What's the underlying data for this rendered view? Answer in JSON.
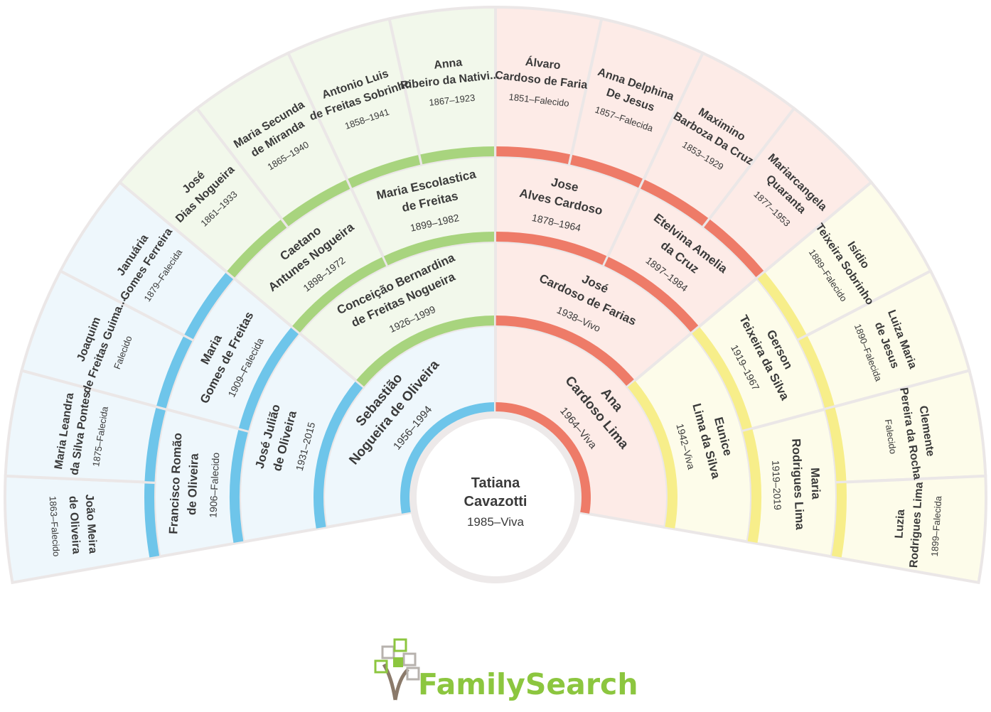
{
  "root": {
    "name_lines": [
      "Tatiana",
      "Cavazotti"
    ],
    "dates": "1985–Viva"
  },
  "generations": [
    {
      "people": [
        {
          "name_lines": [
            "Sebastião",
            "Nogueira de Oliveira"
          ],
          "dates": "1956–1994"
        },
        {
          "name_lines": [
            "Ana",
            "Cardoso Lima"
          ],
          "dates": "1964–Viva"
        }
      ]
    },
    {
      "people": [
        {
          "name_lines": [
            "José Julião",
            "de Oliveira"
          ],
          "dates": "1931–2015"
        },
        {
          "name_lines": [
            "Conceição Bernardina",
            "de Freitas Nogueira"
          ],
          "dates": "1926–1999"
        },
        {
          "name_lines": [
            "José",
            "Cardoso de Farias"
          ],
          "dates": "1938–Vivo"
        },
        {
          "name_lines": [
            "Eunice",
            "Lima da Silva"
          ],
          "dates": "1942–Viva"
        }
      ]
    },
    {
      "people": [
        {
          "name_lines": [
            "Francisco Romão",
            "de Oliveira"
          ],
          "dates": "1906–Falecido"
        },
        {
          "name_lines": [
            "Maria",
            "Gomes de Freitas"
          ],
          "dates": "1909–Falecida"
        },
        {
          "name_lines": [
            "Caetano",
            "Antunes Nogueira"
          ],
          "dates": "1898–1972"
        },
        {
          "name_lines": [
            "Maria Escolastica",
            "de Freitas"
          ],
          "dates": "1899–1982"
        },
        {
          "name_lines": [
            "Jose",
            "Alves Cardoso"
          ],
          "dates": "1878–1964"
        },
        {
          "name_lines": [
            "Etelvina Amelia",
            "da Cruz"
          ],
          "dates": "1897–1984"
        },
        {
          "name_lines": [
            "Gerson",
            "Teixeira da Silva"
          ],
          "dates": "1919–1967"
        },
        {
          "name_lines": [
            "Maria",
            "Rodrigues Lima"
          ],
          "dates": "1919–2019"
        }
      ]
    },
    {
      "people": [
        {
          "name_lines": [
            "João Meira",
            "de Oliveira"
          ],
          "dates": "1863–Falecido"
        },
        {
          "name_lines": [
            "Maria Leandra",
            "da Silva Pontes"
          ],
          "dates": "1875–Falecida"
        },
        {
          "name_lines": [
            "Joaquim",
            "de Freitas Guima..."
          ],
          "dates": "Falecido"
        },
        {
          "name_lines": [
            "Januária",
            "Gomes Ferreira"
          ],
          "dates": "1879–Falecida"
        },
        {
          "name_lines": [
            "José",
            "Dias Nogueira"
          ],
          "dates": "1861–1933"
        },
        {
          "name_lines": [
            "Maria Secunda",
            "de Miranda"
          ],
          "dates": "1865–1940"
        },
        {
          "name_lines": [
            "Antonio Luis",
            "de Freitas Sobrinho"
          ],
          "dates": "1858–1941"
        },
        {
          "name_lines": [
            "Anna",
            "Ribeiro da Nativi..."
          ],
          "dates": "1867–1923"
        },
        {
          "name_lines": [
            "Álvaro",
            "Cardoso de Faria"
          ],
          "dates": "1851–Falecido"
        },
        {
          "name_lines": [
            "Anna Delphina",
            "De Jesus"
          ],
          "dates": "1857–Falecida"
        },
        {
          "name_lines": [
            "Maximino",
            "Barboza Da Cruz"
          ],
          "dates": "1853–1929"
        },
        {
          "name_lines": [
            "Mariarcangela",
            "Quaranta"
          ],
          "dates": "1877–1953"
        },
        {
          "name_lines": [
            "Isídio",
            "Teixeira Sobrinho"
          ],
          "dates": "1889–Falecido"
        },
        {
          "name_lines": [
            "Luiza Maria",
            "de Jesus"
          ],
          "dates": "1890–Falecida"
        },
        {
          "name_lines": [
            "Clemente",
            "Pereira da Rocha"
          ],
          "dates": "Falecido"
        },
        {
          "name_lines": [
            "Luzia",
            "Rodrigues Lima"
          ],
          "dates": "1899–Falecida"
        }
      ]
    }
  ],
  "branch_colors": {
    "paternal_grandfather": "#6ec5ea",
    "paternal_grandmother": "#a8d47e",
    "maternal_grandfather": "#ee7b68",
    "maternal_grandmother": "#f7ee8a"
  },
  "brand": {
    "text": "FamilySearch",
    "icon": "tree-logo-icon",
    "color": "#8cc63f"
  }
}
